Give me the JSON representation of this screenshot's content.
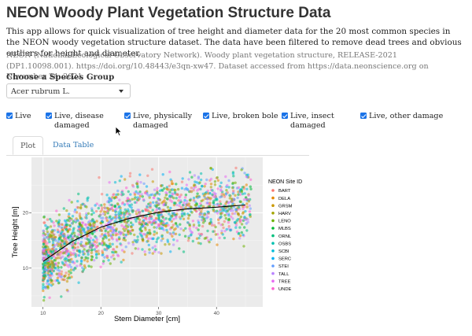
{
  "app": {
    "title": "NEON Woody Plant Vegetation Structure Data",
    "intro": "This app allows for quick visualization of tree height and diameter data for the 20 most common species in the NEON woody vegetation structure dataset. The data have been filtered to remove dead trees and obvious outliers for height and diameter.",
    "citation": "NEON (National Ecological Observatory Network). Woody plant vegetation structure, RELEASE-2021 (DP1.10098.001). https://doi.org/10.48443/e3qn-xw47. Dataset accessed from https://data.neonscience.org on November 24, 2021"
  },
  "species_select": {
    "label": "Choose a Species Group",
    "value": "Acer rubrum L."
  },
  "filters": [
    {
      "label": "Live",
      "checked": true
    },
    {
      "label": "Live, disease damaged",
      "checked": true
    },
    {
      "label": "Live, physically damaged",
      "checked": true
    },
    {
      "label": "Live, broken bole",
      "checked": true
    },
    {
      "label": "Live, insect damaged",
      "checked": true
    },
    {
      "label": "Live, other damage",
      "checked": true
    }
  ],
  "tabs": [
    {
      "label": "Plot",
      "active": true
    },
    {
      "label": "Data Table",
      "active": false
    }
  ],
  "chart_data": {
    "type": "scatter",
    "xlabel": "Stem Diameter [cm]",
    "ylabel": "Tree Height [m]",
    "xlim": [
      8,
      48
    ],
    "ylim": [
      3,
      30
    ],
    "xticks": [
      "10",
      "20",
      "30",
      "40"
    ],
    "yticks": [
      "10",
      "20"
    ],
    "grid": true,
    "legend_title": "NEON Site ID",
    "legend_position": "right",
    "series": [
      {
        "name": "BART",
        "color": "#F8766D"
      },
      {
        "name": "DELA",
        "color": "#E58700"
      },
      {
        "name": "GRSM",
        "color": "#C99800"
      },
      {
        "name": "HARV",
        "color": "#A3A500"
      },
      {
        "name": "LENO",
        "color": "#6BB100"
      },
      {
        "name": "MLBS",
        "color": "#00BA38"
      },
      {
        "name": "ORNL",
        "color": "#00BF7D"
      },
      {
        "name": "OSBS",
        "color": "#00C0AF"
      },
      {
        "name": "SCBI",
        "color": "#00BCD8"
      },
      {
        "name": "SERC",
        "color": "#00B0F6"
      },
      {
        "name": "STEI",
        "color": "#619CFF"
      },
      {
        "name": "TALL",
        "color": "#B983FF"
      },
      {
        "name": "TREE",
        "color": "#E76BF3"
      },
      {
        "name": "UNDE",
        "color": "#FD61D1"
      }
    ],
    "trend_line": {
      "x": [
        10,
        15,
        20,
        25,
        30,
        35,
        40,
        45
      ],
      "y": [
        11.2,
        14.8,
        17.4,
        19.0,
        20.1,
        20.7,
        21.0,
        21.4
      ]
    }
  }
}
